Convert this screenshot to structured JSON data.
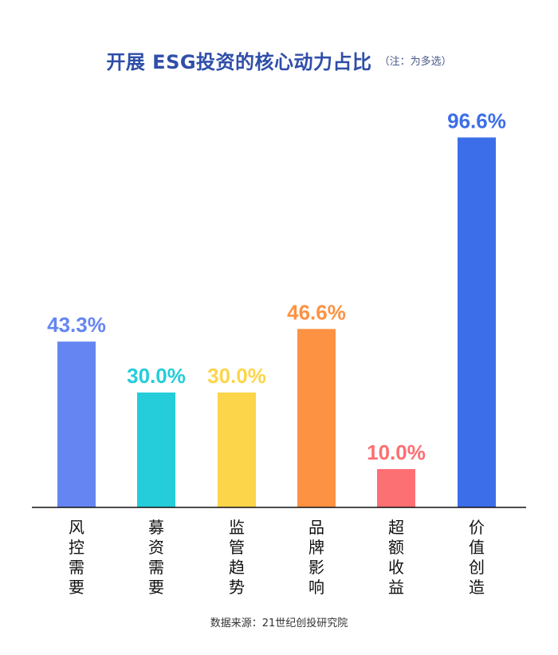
{
  "chart_data": {
    "type": "bar",
    "title": "开展 ESG投资的核心动力占比",
    "subtitle": "（注：为多选）",
    "categories": [
      "风控需要",
      "募资需要",
      "监管趋势",
      "品牌影响",
      "超额收益",
      "价值创造"
    ],
    "values": [
      43.3,
      30.0,
      30.0,
      46.6,
      10.0,
      96.6
    ],
    "value_labels": [
      "43.3%",
      "30.0%",
      "30.0%",
      "46.6%",
      "10.0%",
      "96.6%"
    ],
    "colors": [
      "#6586f2",
      "#24cdd9",
      "#fdd54a",
      "#fd9243",
      "#fc6f72",
      "#3b6ee8"
    ],
    "xlabel": "",
    "ylabel": "",
    "ylim": [
      0,
      100
    ],
    "grid": false,
    "legend": "none"
  },
  "source": "数据来源：21世纪创投研究院"
}
